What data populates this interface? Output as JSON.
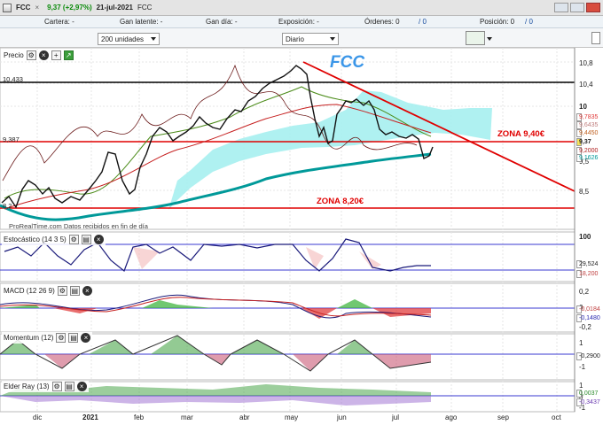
{
  "titlebar": {
    "symbol": "FCC",
    "price_change": "9,37 (+2,97%)",
    "date": "21-jul-2021",
    "code": "FCC"
  },
  "infobar": {
    "cartera": "Cartera: -",
    "gan_latente": "Gan latente: -",
    "gan_dia": "Gan día: -",
    "exposicion": "Exposición: -",
    "ordenes": "Órdenes: 0",
    "ordenes_extra": "/ 0",
    "posicion": "Posición: 0",
    "posicion_extra": "/ 0"
  },
  "controls": {
    "quantity": "200 unidades",
    "period": "Diario"
  },
  "price_panel": {
    "label": "Precio",
    "watermark": "FCC",
    "streaming_note": "ProRealTime.com Datos recibidos en fin de día",
    "h_levels": [
      {
        "label": "10,433",
        "color": "#000000"
      },
      {
        "label": "9,387",
        "color": "#e00000"
      },
      {
        "label": "8,2",
        "color": "#e00000"
      }
    ],
    "y_ticks": [
      "10,8",
      "10,4",
      "10",
      "9,5",
      "8,5"
    ],
    "price_tags": [
      "9,7835",
      "9,6435",
      "9,4450",
      "9,37",
      "9,2000",
      "9,1626"
    ],
    "zones": [
      "ZONA 9,40€",
      "ZONA 8,20€"
    ]
  },
  "stoch_panel": {
    "label": "Estocástico (14 3 5)",
    "y_ticks": [
      "100"
    ],
    "values": [
      "29,524",
      "18,200"
    ]
  },
  "macd_panel": {
    "label": "MACD (12 26 9)",
    "y_ticks": [
      "0,2",
      "0",
      "-0,2"
    ],
    "values": [
      "-0,0184",
      "-0,1480"
    ]
  },
  "momentum_panel": {
    "label": "Momentum (12)",
    "y_ticks": [
      "1",
      "-1"
    ],
    "values": [
      "-0,2900"
    ]
  },
  "elder_panel": {
    "label": "Elder Ray (13)",
    "y_ticks": [
      "1",
      "0",
      "-1"
    ],
    "values": [
      "0,0037",
      "-0,3437"
    ]
  },
  "xaxis": {
    "labels": [
      "dic",
      "2021",
      "feb",
      "mar",
      "abr",
      "may",
      "jun",
      "jul",
      "ago",
      "sep",
      "oct"
    ]
  },
  "colors": {
    "accent_red": "#e00000",
    "cloud": "#a6eff0",
    "ma_long": "#009999",
    "fcc_blue": "#3b96e8"
  }
}
